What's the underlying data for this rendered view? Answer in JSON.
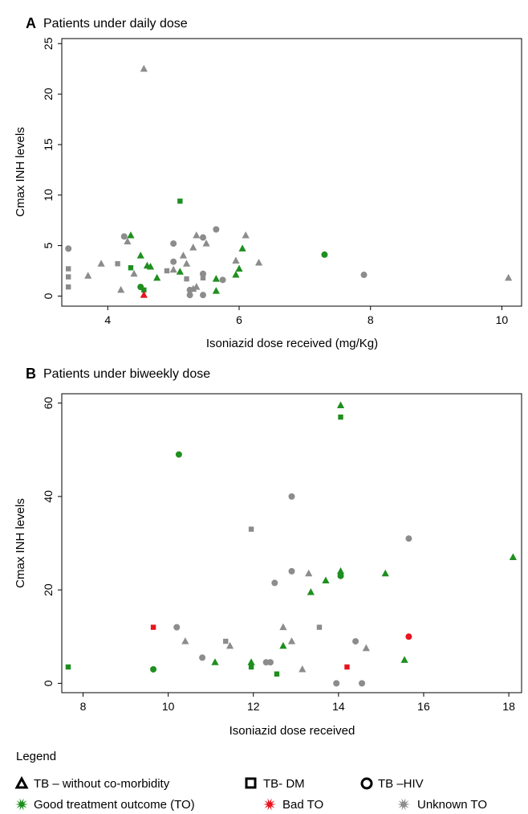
{
  "colors": {
    "good": "#1f8f1f",
    "bad": "#e8141e",
    "unknown": "#8c8c8c",
    "axis": "#000000"
  },
  "chart_data": [
    {
      "type": "scatter",
      "panel_letter": "A",
      "title": "Patients under daily dose",
      "xlabel": "Isoniazid dose received (mg/Kg)",
      "ylabel": "Cmax INH levels",
      "xlim": [
        3.3,
        10.3
      ],
      "ylim": [
        -1,
        25.5
      ],
      "xticks": [
        "4",
        "6",
        "8",
        "10"
      ],
      "yticks": [
        "0",
        "5",
        "10",
        "15",
        "20",
        "25"
      ],
      "grid": false,
      "points": [
        {
          "x": 4.55,
          "y": 22.5,
          "group": "TB without co-morbidity",
          "outcome": "Unknown TO"
        },
        {
          "x": 5.1,
          "y": 9.4,
          "group": "TB-DM",
          "outcome": "Good TO"
        },
        {
          "x": 4.35,
          "y": 6.0,
          "group": "TB without co-morbidity",
          "outcome": "Good TO"
        },
        {
          "x": 4.25,
          "y": 5.9,
          "group": "TB-HIV",
          "outcome": "Unknown TO"
        },
        {
          "x": 4.3,
          "y": 5.4,
          "group": "TB without co-morbidity",
          "outcome": "Unknown TO"
        },
        {
          "x": 3.4,
          "y": 4.7,
          "group": "TB-HIV",
          "outcome": "Unknown TO"
        },
        {
          "x": 5.65,
          "y": 6.6,
          "group": "TB-HIV",
          "outcome": "Unknown TO"
        },
        {
          "x": 5.35,
          "y": 6.0,
          "group": "TB without co-morbidity",
          "outcome": "Unknown TO"
        },
        {
          "x": 5.45,
          "y": 5.8,
          "group": "TB-HIV",
          "outcome": "Unknown TO"
        },
        {
          "x": 6.1,
          "y": 6.0,
          "group": "TB without co-morbidity",
          "outcome": "Unknown TO"
        },
        {
          "x": 6.05,
          "y": 4.7,
          "group": "TB without co-morbidity",
          "outcome": "Good TO"
        },
        {
          "x": 5.0,
          "y": 5.2,
          "group": "TB-HIV",
          "outcome": "Unknown TO"
        },
        {
          "x": 5.3,
          "y": 4.8,
          "group": "TB without co-morbidity",
          "outcome": "Unknown TO"
        },
        {
          "x": 5.5,
          "y": 5.2,
          "group": "TB without co-morbidity",
          "outcome": "Unknown TO"
        },
        {
          "x": 4.5,
          "y": 4.0,
          "group": "TB without co-morbidity",
          "outcome": "Good TO"
        },
        {
          "x": 5.15,
          "y": 4.0,
          "group": "TB without co-morbidity",
          "outcome": "Unknown TO"
        },
        {
          "x": 3.9,
          "y": 3.2,
          "group": "TB without co-morbidity",
          "outcome": "Unknown TO"
        },
        {
          "x": 4.15,
          "y": 3.2,
          "group": "TB-DM",
          "outcome": "Unknown TO"
        },
        {
          "x": 4.6,
          "y": 3.0,
          "group": "TB without co-morbidity",
          "outcome": "Good TO"
        },
        {
          "x": 4.65,
          "y": 2.9,
          "group": "TB without co-morbidity",
          "outcome": "Good TO"
        },
        {
          "x": 5.0,
          "y": 3.4,
          "group": "TB-HIV",
          "outcome": "Unknown TO"
        },
        {
          "x": 5.2,
          "y": 3.2,
          "group": "TB without co-morbidity",
          "outcome": "Unknown TO"
        },
        {
          "x": 5.95,
          "y": 3.5,
          "group": "TB without co-morbidity",
          "outcome": "Unknown TO"
        },
        {
          "x": 6.3,
          "y": 3.3,
          "group": "TB without co-morbidity",
          "outcome": "Unknown TO"
        },
        {
          "x": 3.4,
          "y": 2.7,
          "group": "TB-DM",
          "outcome": "Unknown TO"
        },
        {
          "x": 4.35,
          "y": 2.8,
          "group": "TB-DM",
          "outcome": "Good TO"
        },
        {
          "x": 4.4,
          "y": 2.2,
          "group": "TB without co-morbidity",
          "outcome": "Unknown TO"
        },
        {
          "x": 4.9,
          "y": 2.5,
          "group": "TB-DM",
          "outcome": "Unknown TO"
        },
        {
          "x": 5.1,
          "y": 2.4,
          "group": "TB without co-morbidity",
          "outcome": "Good TO"
        },
        {
          "x": 5.0,
          "y": 2.6,
          "group": "TB without co-morbidity",
          "outcome": "Unknown TO"
        },
        {
          "x": 5.45,
          "y": 2.2,
          "group": "TB-HIV",
          "outcome": "Unknown TO"
        },
        {
          "x": 5.95,
          "y": 2.1,
          "group": "TB without co-morbidity",
          "outcome": "Good TO"
        },
        {
          "x": 6.0,
          "y": 2.7,
          "group": "TB without co-morbidity",
          "outcome": "Good TO"
        },
        {
          "x": 3.4,
          "y": 1.9,
          "group": "TB-DM",
          "outcome": "Unknown TO"
        },
        {
          "x": 3.7,
          "y": 2.0,
          "group": "TB without co-morbidity",
          "outcome": "Unknown TO"
        },
        {
          "x": 4.75,
          "y": 1.8,
          "group": "TB without co-morbidity",
          "outcome": "Good TO"
        },
        {
          "x": 5.2,
          "y": 1.7,
          "group": "TB-DM",
          "outcome": "Unknown TO"
        },
        {
          "x": 5.45,
          "y": 1.8,
          "group": "TB-DM",
          "outcome": "Unknown TO"
        },
        {
          "x": 5.65,
          "y": 1.7,
          "group": "TB without co-morbidity",
          "outcome": "Good TO"
        },
        {
          "x": 5.75,
          "y": 1.6,
          "group": "TB-HIV",
          "outcome": "Unknown TO"
        },
        {
          "x": 7.9,
          "y": 2.1,
          "group": "TB-HIV",
          "outcome": "Unknown TO"
        },
        {
          "x": 10.1,
          "y": 1.8,
          "group": "TB without co-morbidity",
          "outcome": "Unknown TO"
        },
        {
          "x": 3.4,
          "y": 0.9,
          "group": "TB-DM",
          "outcome": "Unknown TO"
        },
        {
          "x": 4.2,
          "y": 0.6,
          "group": "TB without co-morbidity",
          "outcome": "Unknown TO"
        },
        {
          "x": 4.5,
          "y": 0.9,
          "group": "TB-HIV",
          "outcome": "Good TO"
        },
        {
          "x": 4.55,
          "y": 0.6,
          "group": "TB-DM",
          "outcome": "Good TO"
        },
        {
          "x": 5.25,
          "y": 0.6,
          "group": "TB-HIV",
          "outcome": "Unknown TO"
        },
        {
          "x": 5.3,
          "y": 0.7,
          "group": "TB without co-morbidity",
          "outcome": "Unknown TO"
        },
        {
          "x": 5.35,
          "y": 0.9,
          "group": "TB without co-morbidity",
          "outcome": "Unknown TO"
        },
        {
          "x": 5.65,
          "y": 0.5,
          "group": "TB without co-morbidity",
          "outcome": "Good TO"
        },
        {
          "x": 5.25,
          "y": 0.1,
          "group": "TB-HIV",
          "outcome": "Unknown TO"
        },
        {
          "x": 5.45,
          "y": 0.1,
          "group": "TB-HIV",
          "outcome": "Unknown TO"
        },
        {
          "x": 4.55,
          "y": 0.1,
          "group": "TB without co-morbidity",
          "outcome": "Bad TO"
        },
        {
          "x": 7.3,
          "y": 4.1,
          "group": "TB-HIV",
          "outcome": "Good TO"
        }
      ]
    },
    {
      "type": "scatter",
      "panel_letter": "B",
      "title": "Patients under biweekly dose",
      "xlabel": "Isoniazid dose received",
      "ylabel": "Cmax INH levels",
      "xlim": [
        7.5,
        18.3
      ],
      "ylim": [
        -2,
        62
      ],
      "xticks": [
        "8",
        "10",
        "12",
        "14",
        "16",
        "18"
      ],
      "yticks": [
        "0",
        "20",
        "40",
        "60"
      ],
      "grid": false,
      "points": [
        {
          "x": 14.05,
          "y": 59.5,
          "group": "TB without co-morbidity",
          "outcome": "Good TO"
        },
        {
          "x": 14.05,
          "y": 57.0,
          "group": "TB-DM",
          "outcome": "Good TO"
        },
        {
          "x": 10.25,
          "y": 49.0,
          "group": "TB-HIV",
          "outcome": "Good TO"
        },
        {
          "x": 12.9,
          "y": 40.0,
          "group": "TB-HIV",
          "outcome": "Unknown TO"
        },
        {
          "x": 11.95,
          "y": 33.0,
          "group": "TB-DM",
          "outcome": "Unknown TO"
        },
        {
          "x": 15.65,
          "y": 31.0,
          "group": "TB-HIV",
          "outcome": "Unknown TO"
        },
        {
          "x": 18.1,
          "y": 27.0,
          "group": "TB without co-morbidity",
          "outcome": "Good TO"
        },
        {
          "x": 12.9,
          "y": 24.0,
          "group": "TB-HIV",
          "outcome": "Unknown TO"
        },
        {
          "x": 14.05,
          "y": 24.0,
          "group": "TB without co-morbidity",
          "outcome": "Good TO"
        },
        {
          "x": 14.05,
          "y": 23.0,
          "group": "TB-HIV",
          "outcome": "Good TO"
        },
        {
          "x": 13.3,
          "y": 23.5,
          "group": "TB without co-morbidity",
          "outcome": "Unknown TO"
        },
        {
          "x": 15.1,
          "y": 23.5,
          "group": "TB without co-morbidity",
          "outcome": "Good TO"
        },
        {
          "x": 13.7,
          "y": 22.0,
          "group": "TB without co-morbidity",
          "outcome": "Good TO"
        },
        {
          "x": 12.5,
          "y": 21.5,
          "group": "TB-HIV",
          "outcome": "Unknown TO"
        },
        {
          "x": 13.35,
          "y": 19.5,
          "group": "TB without co-morbidity",
          "outcome": "Good TO"
        },
        {
          "x": 9.65,
          "y": 12.0,
          "group": "TB-DM",
          "outcome": "Bad TO"
        },
        {
          "x": 10.2,
          "y": 12.0,
          "group": "TB-HIV",
          "outcome": "Unknown TO"
        },
        {
          "x": 12.7,
          "y": 12.0,
          "group": "TB without co-morbidity",
          "outcome": "Unknown TO"
        },
        {
          "x": 13.55,
          "y": 12.0,
          "group": "TB-DM",
          "outcome": "Unknown TO"
        },
        {
          "x": 15.65,
          "y": 10.0,
          "group": "TB-HIV",
          "outcome": "Bad TO"
        },
        {
          "x": 10.4,
          "y": 9.0,
          "group": "TB without co-morbidity",
          "outcome": "Unknown TO"
        },
        {
          "x": 11.35,
          "y": 9.0,
          "group": "TB-DM",
          "outcome": "Unknown TO"
        },
        {
          "x": 11.45,
          "y": 8.0,
          "group": "TB without co-morbidity",
          "outcome": "Unknown TO"
        },
        {
          "x": 12.9,
          "y": 9.0,
          "group": "TB without co-morbidity",
          "outcome": "Unknown TO"
        },
        {
          "x": 14.4,
          "y": 9.0,
          "group": "TB-HIV",
          "outcome": "Unknown TO"
        },
        {
          "x": 14.65,
          "y": 7.5,
          "group": "TB without co-morbidity",
          "outcome": "Unknown TO"
        },
        {
          "x": 12.7,
          "y": 8.0,
          "group": "TB without co-morbidity",
          "outcome": "Good TO"
        },
        {
          "x": 10.8,
          "y": 5.5,
          "group": "TB-HIV",
          "outcome": "Unknown TO"
        },
        {
          "x": 15.55,
          "y": 5.0,
          "group": "TB without co-morbidity",
          "outcome": "Good TO"
        },
        {
          "x": 12.3,
          "y": 4.5,
          "group": "TB-HIV",
          "outcome": "Unknown TO"
        },
        {
          "x": 12.4,
          "y": 4.5,
          "group": "TB-HIV",
          "outcome": "Unknown TO"
        },
        {
          "x": 11.1,
          "y": 4.5,
          "group": "TB without co-morbidity",
          "outcome": "Good TO"
        },
        {
          "x": 11.95,
          "y": 4.5,
          "group": "TB without co-morbidity",
          "outcome": "Good TO"
        },
        {
          "x": 11.95,
          "y": 3.5,
          "group": "TB-DM",
          "outcome": "Good TO"
        },
        {
          "x": 7.65,
          "y": 3.5,
          "group": "TB-DM",
          "outcome": "Good TO"
        },
        {
          "x": 9.65,
          "y": 3.0,
          "group": "TB-HIV",
          "outcome": "Good TO"
        },
        {
          "x": 13.15,
          "y": 3.0,
          "group": "TB without co-morbidity",
          "outcome": "Unknown TO"
        },
        {
          "x": 14.2,
          "y": 3.5,
          "group": "TB-DM",
          "outcome": "Bad TO"
        },
        {
          "x": 12.55,
          "y": 2.0,
          "group": "TB-DM",
          "outcome": "Good TO"
        },
        {
          "x": 13.95,
          "y": 0.0,
          "group": "TB-HIV",
          "outcome": "Unknown TO"
        },
        {
          "x": 14.55,
          "y": 0.0,
          "group": "TB-HIV",
          "outcome": "Unknown TO"
        }
      ]
    }
  ],
  "legend": {
    "title": "Legend",
    "groups": [
      {
        "label": "TB – without co-morbidity",
        "shape": "triangle"
      },
      {
        "label": "TB- DM",
        "shape": "square"
      },
      {
        "label": "TB –HIV",
        "shape": "circle"
      }
    ],
    "outcomes": [
      {
        "label": "Good treatment outcome (TO)",
        "color": "#1f8f1f"
      },
      {
        "label": "Bad TO",
        "color": "#e8141e"
      },
      {
        "label": "Unknown TO",
        "color": "#8c8c8c"
      }
    ]
  }
}
